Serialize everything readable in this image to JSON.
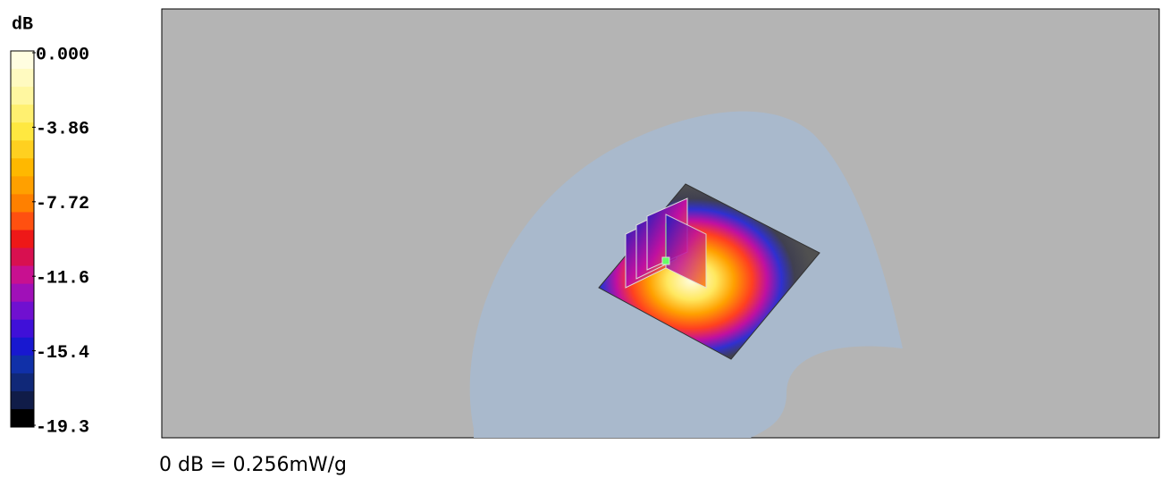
{
  "colorbar": {
    "unit": "dB",
    "ticks": [
      "0.000",
      "-3.86",
      "-7.72",
      "-11.6",
      "-15.4",
      "-19.3"
    ]
  },
  "caption": "0 dB = 0.256mW/g"
}
